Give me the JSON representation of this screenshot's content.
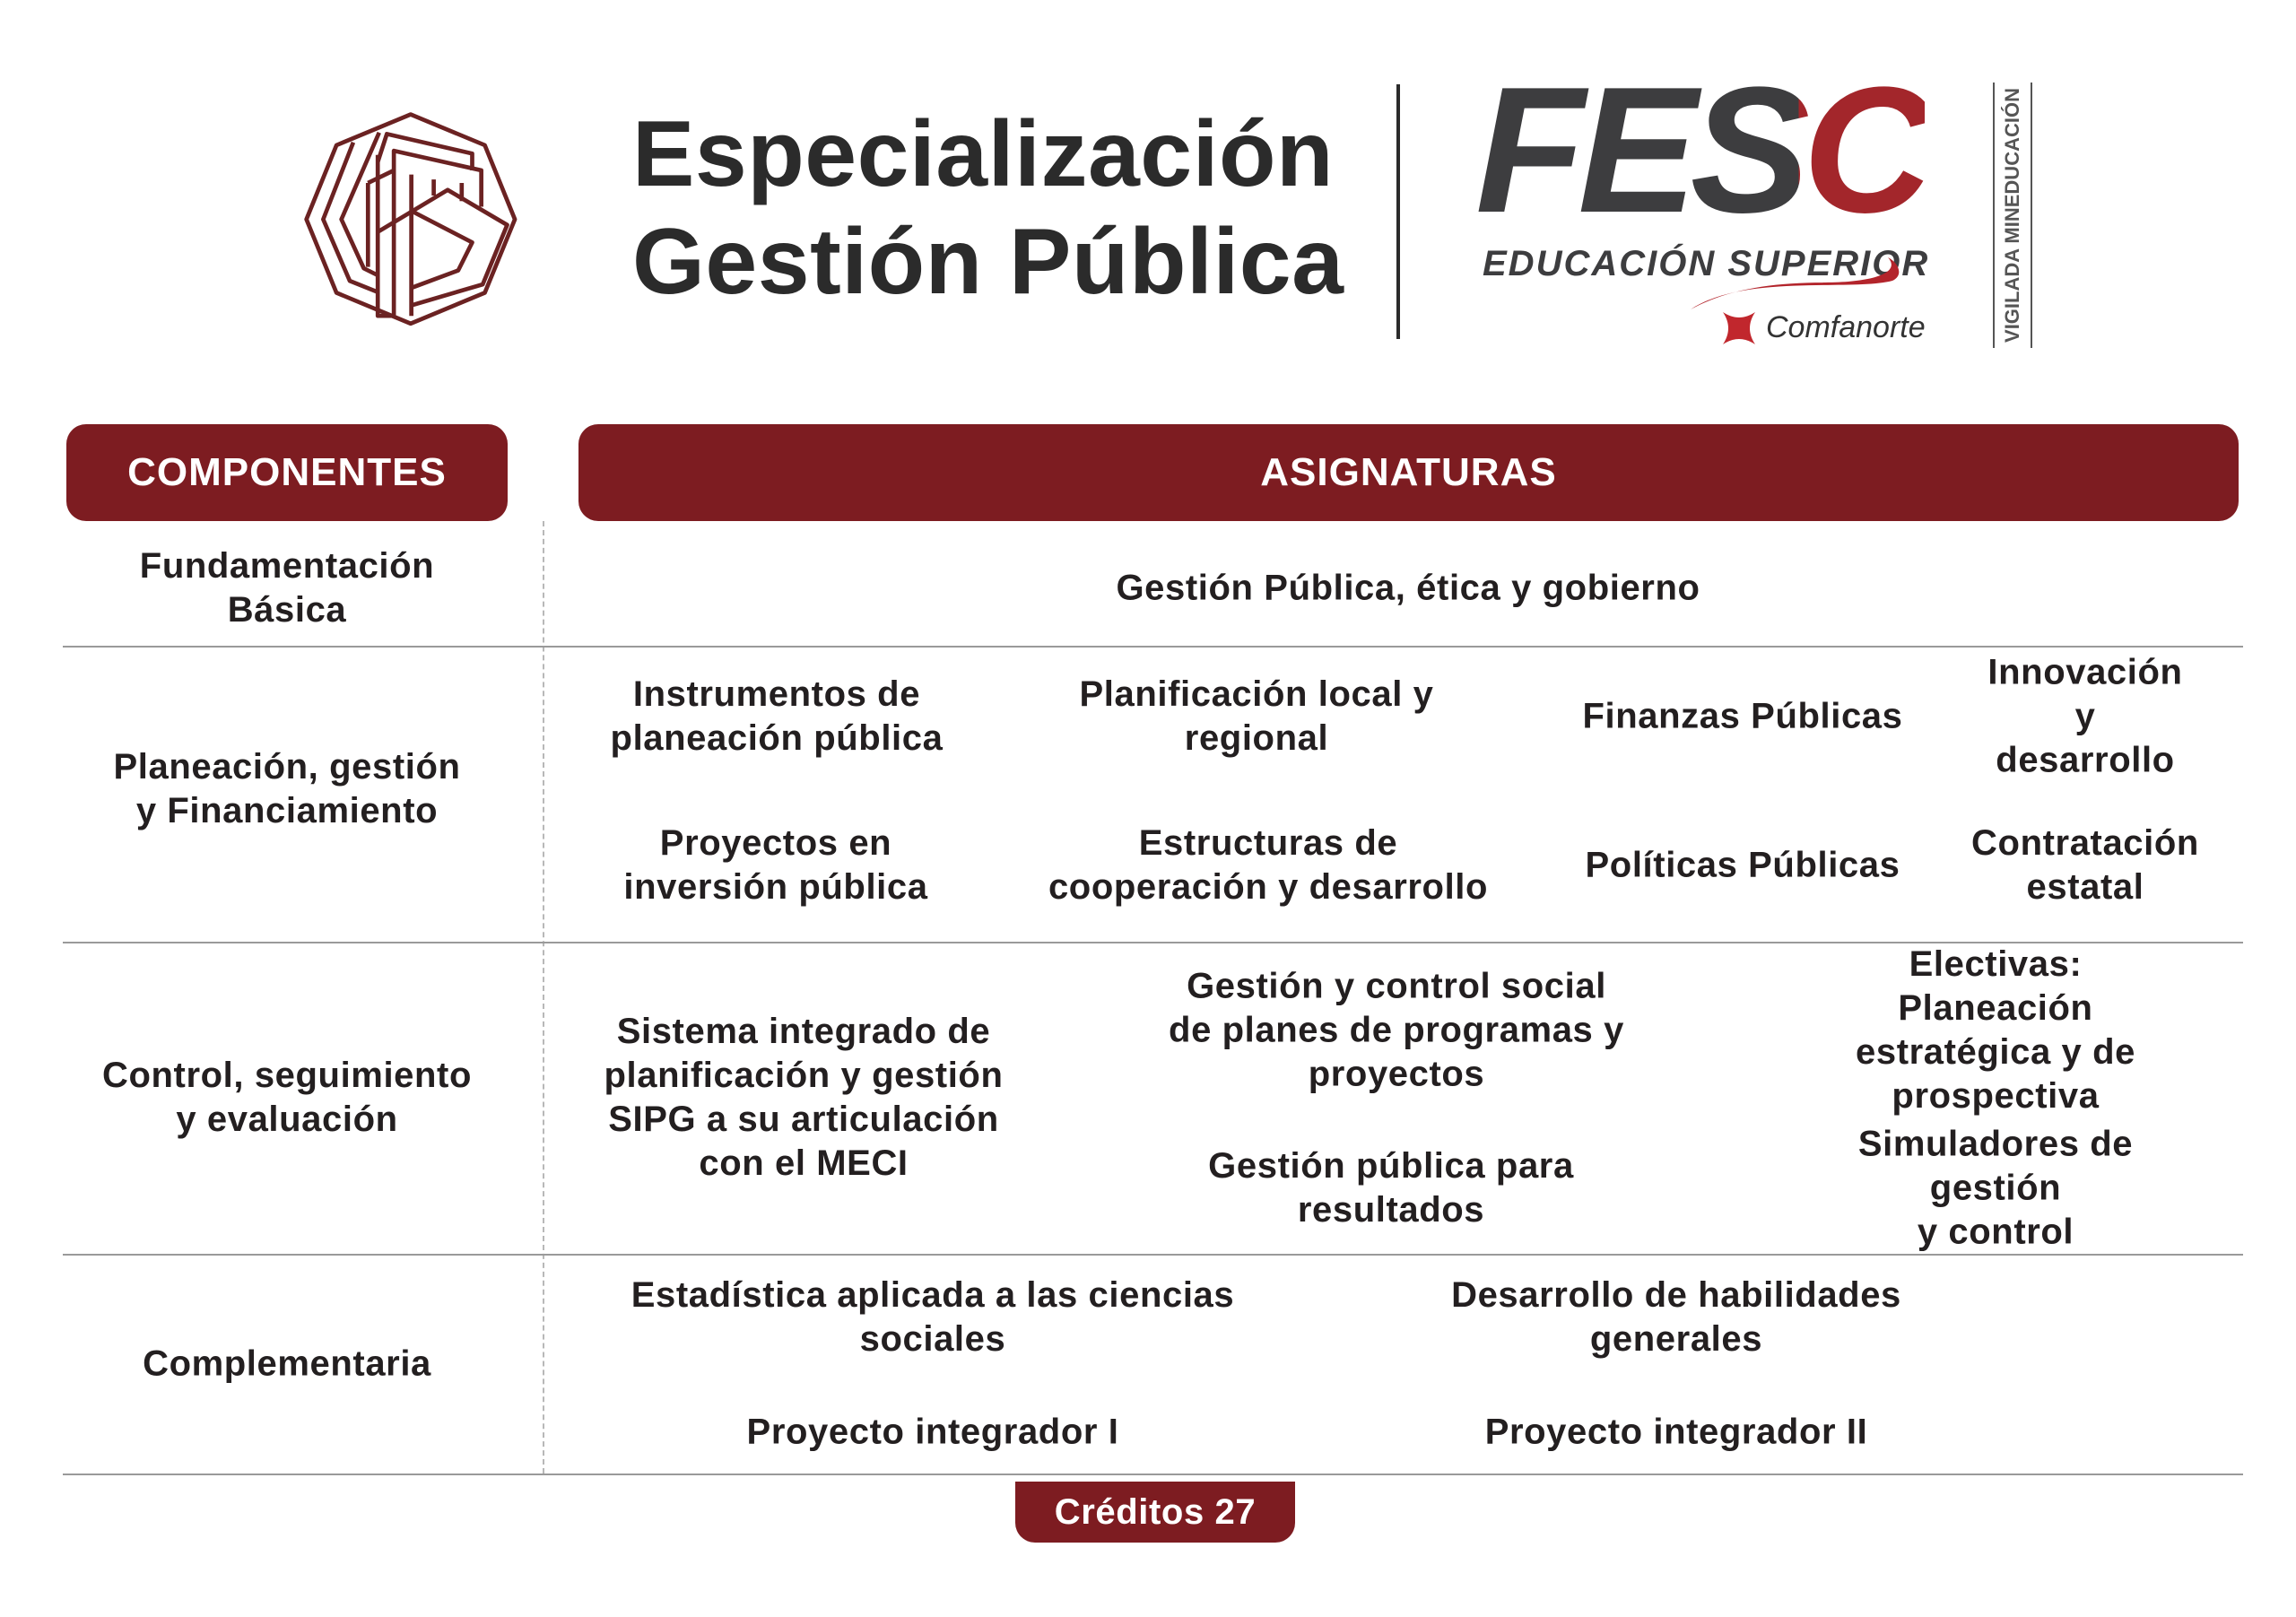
{
  "header": {
    "title_line1": "Especialización",
    "title_line2": "Gestión Pública",
    "fesc_logo_text": "FESC",
    "fesc_subtitle": "EDUCACIÓN SUPERIOR",
    "comfanorte": "Comfanorte",
    "vigilada": "VIGILADA MINEDUCACIÓN"
  },
  "colors": {
    "accent": "#7d1c21",
    "text": "#231f20"
  },
  "table": {
    "col_components": "COMPONENTES",
    "col_subjects": "ASIGNATURAS",
    "rows": [
      {
        "component": "Fundamentación\nBásica",
        "subjects": [
          "Gestión Pública, ética y gobierno"
        ]
      },
      {
        "component": "Planeación, gestión\ny Financiamiento",
        "subjects": [
          "Instrumentos de\nplaneación pública",
          "Planificación local y\nregional",
          "Finanzas Públicas",
          "Innovación y\ndesarrollo",
          "Proyectos en\ninversión pública",
          "Estructuras de\ncooperación y desarrollo",
          "Políticas Públicas",
          "Contratación\nestatal"
        ]
      },
      {
        "component": "Control, seguimiento\ny evaluación",
        "subjects": [
          "Sistema integrado de\nplanificación y gestión\nSIPG a su articulación\ncon el MECI",
          "Gestión y control social\nde planes de programas y\nproyectos",
          "Electivas: Planeación\nestratégica y de\nprospectiva",
          "Gestión pública para\nresultados",
          "Simuladores de gestión\ny control"
        ]
      },
      {
        "component": "Complementaria",
        "subjects": [
          "Estadística aplicada a las ciencias\nsociales",
          "Desarrollo de habilidades\ngenerales",
          "Proyecto integrador I",
          "Proyecto integrador II"
        ]
      }
    ]
  },
  "credits": "Créditos 27"
}
